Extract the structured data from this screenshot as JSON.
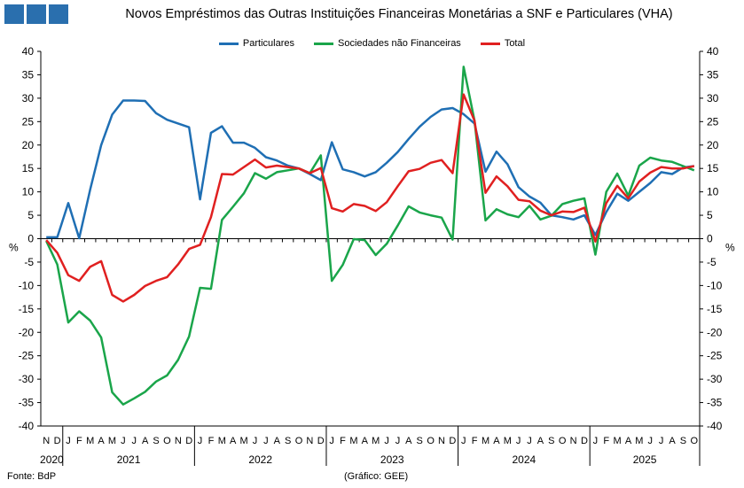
{
  "chart_data": {
    "type": "line",
    "title": "Novos Empréstimos das Outras Instituições Financeiras Monetárias a SNF e Particulares (VHA)",
    "ylabel_left": "%",
    "ylabel_right": "%",
    "ylim": [
      -40,
      40
    ],
    "yticks": [
      40,
      35,
      30,
      25,
      20,
      15,
      10,
      5,
      0,
      -5,
      -10,
      -15,
      -20,
      -25,
      -30,
      -35,
      -40
    ],
    "x": [
      "2020-11",
      "2020-12",
      "2021-01",
      "2021-02",
      "2021-03",
      "2021-04",
      "2021-05",
      "2021-06",
      "2021-07",
      "2021-08",
      "2021-09",
      "2021-10",
      "2021-11",
      "2021-12",
      "2022-01",
      "2022-02",
      "2022-03",
      "2022-04",
      "2022-05",
      "2022-06",
      "2022-07",
      "2022-08",
      "2022-09",
      "2022-10",
      "2022-11",
      "2022-12",
      "2023-01",
      "2023-02",
      "2023-03",
      "2023-04",
      "2023-05",
      "2023-06",
      "2023-07",
      "2023-08",
      "2023-09",
      "2023-10",
      "2023-11",
      "2023-12",
      "2024-01",
      "2024-02",
      "2024-03",
      "2024-04",
      "2024-05",
      "2024-06",
      "2024-07",
      "2024-08",
      "2024-09",
      "2024-10",
      "2024-11",
      "2024-12",
      "2025-01",
      "2025-02",
      "2025-03",
      "2025-04",
      "2025-05",
      "2025-06",
      "2025-07",
      "2025-08",
      "2025-09",
      "2025-10"
    ],
    "month_labels": [
      "N",
      "D",
      "J",
      "F",
      "M",
      "A",
      "M",
      "J",
      "J",
      "A",
      "S",
      "O",
      "N",
      "D",
      "J",
      "F",
      "M",
      "A",
      "M",
      "J",
      "J",
      "A",
      "S",
      "O",
      "N",
      "D",
      "J",
      "F",
      "M",
      "A",
      "M",
      "J",
      "J",
      "A",
      "S",
      "O",
      "N",
      "D",
      "J",
      "F",
      "M",
      "A",
      "M",
      "J",
      "J",
      "A",
      "S",
      "O",
      "N",
      "D",
      "J",
      "F",
      "M",
      "A",
      "M",
      "J",
      "J",
      "A",
      "S",
      "O"
    ],
    "years": [
      {
        "label": "2020",
        "start": 0,
        "count": 2
      },
      {
        "label": "2021",
        "start": 2,
        "count": 12
      },
      {
        "label": "2022",
        "start": 14,
        "count": 12
      },
      {
        "label": "2023",
        "start": 26,
        "count": 12
      },
      {
        "label": "2024",
        "start": 38,
        "count": 12
      },
      {
        "label": "2025",
        "start": 50,
        "count": 10
      }
    ],
    "series": [
      {
        "name": "Particulares",
        "color": "#1f6fb4",
        "values": [
          0.3,
          0.3,
          7.6,
          0.1,
          10.5,
          20.0,
          26.5,
          29.5,
          29.5,
          29.4,
          26.8,
          25.4,
          24.6,
          23.8,
          8.4,
          22.6,
          24.0,
          20.5,
          20.5,
          19.4,
          17.4,
          16.7,
          15.6,
          15.0,
          13.8,
          12.5,
          20.6,
          14.8,
          14.2,
          13.3,
          14.2,
          16.2,
          18.5,
          21.3,
          23.9,
          26.0,
          27.6,
          27.9,
          26.6,
          24.6,
          14.3,
          18.6,
          15.9,
          11.0,
          9.0,
          7.7,
          5.0,
          4.6,
          4.1,
          5.0,
          0.8,
          5.7,
          9.6,
          8.1,
          10.0,
          11.9,
          14.2,
          13.8,
          15.2,
          15.5
        ]
      },
      {
        "name": "Sociedades não Financeiras",
        "color": "#1aa54a",
        "values": [
          -0.5,
          -5.5,
          -17.9,
          -15.5,
          -17.5,
          -21.1,
          -32.8,
          -35.4,
          -34.1,
          -32.7,
          -30.5,
          -29.2,
          -25.9,
          -20.9,
          -10.5,
          -10.7,
          4.0,
          6.8,
          9.7,
          14.0,
          12.8,
          14.2,
          14.6,
          15.0,
          14.0,
          17.8,
          -9.0,
          -5.6,
          -0.1,
          -0.3,
          -3.5,
          -1.1,
          2.8,
          6.9,
          5.6,
          5.0,
          4.5,
          -0.2,
          36.7,
          25.2,
          3.9,
          6.3,
          5.2,
          4.6,
          7.0,
          4.1,
          4.9,
          7.4,
          8.1,
          8.6,
          -3.4,
          10.0,
          13.9,
          9.2,
          15.6,
          17.3,
          16.7,
          16.4,
          15.5,
          14.6
        ]
      },
      {
        "name": "Total",
        "color": "#e02020",
        "values": [
          -0.3,
          -3.0,
          -7.8,
          -9.0,
          -6.0,
          -4.8,
          -12.0,
          -13.4,
          -12.0,
          -10.1,
          -9.0,
          -8.2,
          -5.5,
          -2.2,
          -1.3,
          4.6,
          13.8,
          13.7,
          15.3,
          16.9,
          15.2,
          15.6,
          15.3,
          15.0,
          14.0,
          15.1,
          6.5,
          5.8,
          7.4,
          7.0,
          5.9,
          7.8,
          11.2,
          14.4,
          14.9,
          16.2,
          16.8,
          14.0,
          30.8,
          25.2,
          9.8,
          13.3,
          11.2,
          8.3,
          8.0,
          6.0,
          5.0,
          5.8,
          5.7,
          6.6,
          -0.6,
          7.6,
          11.3,
          8.6,
          12.2,
          14.1,
          15.3,
          15.0,
          15.0,
          15.5
        ]
      }
    ]
  },
  "source_label": "Fonte: BdP",
  "credit_label": "(Gráfico: GEE)"
}
